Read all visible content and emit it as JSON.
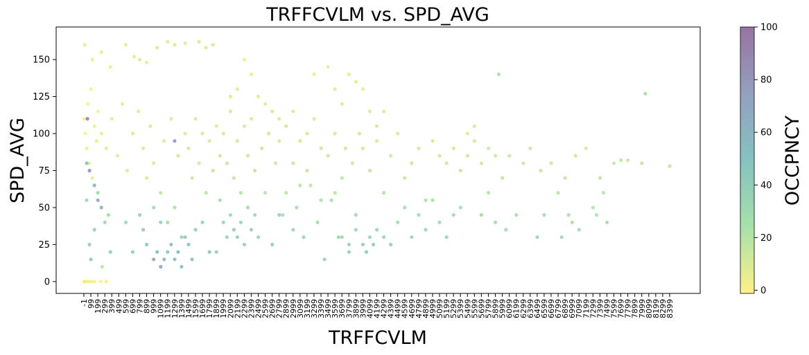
{
  "chart_data": {
    "type": "scatter",
    "title": "TRFFCVLM vs. SPD_AVG",
    "xlabel": "TRFFCVLM",
    "ylabel": "SPD_AVG",
    "colorbar_label": "OCCPNCY",
    "colormap": "viridis_r",
    "marker_alpha": 0.5,
    "grid": false,
    "legend": "none",
    "xlim": [
      -1,
      8399
    ],
    "ylim": [
      -8,
      172
    ],
    "clim": [
      0,
      100
    ],
    "yticks": [
      0,
      25,
      50,
      75,
      100,
      125,
      150
    ],
    "colorbar_ticks": [
      0,
      20,
      40,
      60,
      80,
      100
    ],
    "xtick_labels": [
      "-1",
      "99",
      "199",
      "299",
      "399",
      "499",
      "599",
      "699",
      "799",
      "899",
      "999",
      "1099",
      "1199",
      "1299",
      "1399",
      "1499",
      "1599",
      "1699",
      "1799",
      "1899",
      "1999",
      "2099",
      "2199",
      "2299",
      "2399",
      "2499",
      "2599",
      "2699",
      "2799",
      "2899",
      "2999",
      "3099",
      "3199",
      "3299",
      "3399",
      "3499",
      "3599",
      "3699",
      "3799",
      "3899",
      "3999",
      "4099",
      "4199",
      "4299",
      "4399",
      "4499",
      "4599",
      "4699",
      "4799",
      "4899",
      "4999",
      "5099",
      "5199",
      "5299",
      "5399",
      "5499",
      "5599",
      "5699",
      "5799",
      "5899",
      "5999",
      "6099",
      "6199",
      "6299",
      "6399",
      "6499",
      "6599",
      "6699",
      "6799",
      "6899",
      "6999",
      "7099",
      "7199",
      "7299",
      "7399",
      "7499",
      "7599",
      "7699",
      "7799",
      "7899",
      "7999",
      "8099",
      "8199",
      "8299",
      "8399"
    ],
    "points": [
      [
        0,
        110,
        2
      ],
      [
        20,
        100,
        3
      ],
      [
        40,
        90,
        4
      ],
      [
        60,
        120,
        2
      ],
      [
        80,
        80,
        5
      ],
      [
        100,
        130,
        3
      ],
      [
        120,
        70,
        6
      ],
      [
        150,
        105,
        4
      ],
      [
        180,
        95,
        3
      ],
      [
        200,
        115,
        2
      ],
      [
        0,
        0,
        2
      ],
      [
        20,
        0,
        2
      ],
      [
        60,
        0,
        3
      ],
      [
        100,
        0,
        4
      ],
      [
        150,
        0,
        3
      ],
      [
        240,
        0,
        2
      ],
      [
        320,
        0,
        3
      ],
      [
        10,
        160,
        8
      ],
      [
        120,
        150,
        6
      ],
      [
        250,
        155,
        8
      ],
      [
        380,
        145,
        6
      ],
      [
        600,
        160,
        7
      ],
      [
        720,
        152,
        8
      ],
      [
        800,
        150,
        9
      ],
      [
        900,
        148,
        7
      ],
      [
        1050,
        158,
        9
      ],
      [
        1200,
        162,
        8
      ],
      [
        1300,
        160,
        10
      ],
      [
        1450,
        161,
        8
      ],
      [
        1650,
        162,
        9
      ],
      [
        1750,
        158,
        10
      ],
      [
        1850,
        160,
        11
      ],
      [
        40,
        80,
        50
      ],
      [
        40,
        55,
        35
      ],
      [
        80,
        25,
        40
      ],
      [
        100,
        15,
        45
      ],
      [
        150,
        35,
        40
      ],
      [
        200,
        60,
        30
      ],
      [
        260,
        10,
        20
      ],
      [
        300,
        40,
        35
      ],
      [
        350,
        45,
        30
      ],
      [
        380,
        20,
        40
      ],
      [
        250,
        100,
        6
      ],
      [
        320,
        90,
        8
      ],
      [
        400,
        110,
        7
      ],
      [
        480,
        85,
        9
      ],
      [
        550,
        120,
        8
      ],
      [
        620,
        75,
        10
      ],
      [
        700,
        100,
        9
      ],
      [
        780,
        115,
        8
      ],
      [
        850,
        90,
        10
      ],
      [
        900,
        70,
        12
      ],
      [
        950,
        105,
        9
      ],
      [
        1000,
        80,
        12
      ],
      [
        1100,
        60,
        18
      ],
      [
        1150,
        95,
        11
      ],
      [
        1200,
        40,
        30
      ],
      [
        1250,
        110,
        10
      ],
      [
        1300,
        50,
        25
      ],
      [
        1350,
        85,
        12
      ],
      [
        1400,
        30,
        35
      ],
      [
        1450,
        100,
        11
      ],
      [
        600,
        40,
        35
      ],
      [
        700,
        20,
        40
      ],
      [
        800,
        45,
        38
      ],
      [
        850,
        35,
        42
      ],
      [
        900,
        25,
        45
      ],
      [
        1000,
        50,
        30
      ],
      [
        1050,
        20,
        55
      ],
      [
        1100,
        40,
        40
      ],
      [
        1150,
        15,
        60
      ],
      [
        1200,
        20,
        48
      ],
      [
        1250,
        25,
        52
      ],
      [
        1300,
        15,
        58
      ],
      [
        1350,
        20,
        55
      ],
      [
        1400,
        10,
        50
      ],
      [
        1450,
        30,
        44
      ],
      [
        1500,
        25,
        48
      ],
      [
        1550,
        15,
        52
      ],
      [
        1600,
        35,
        40
      ],
      [
        1700,
        40,
        38
      ],
      [
        1800,
        20,
        45
      ],
      [
        1500,
        90,
        12
      ],
      [
        1550,
        70,
        15
      ],
      [
        1600,
        110,
        10
      ],
      [
        1650,
        80,
        14
      ],
      [
        1700,
        100,
        11
      ],
      [
        1750,
        60,
        20
      ],
      [
        1800,
        95,
        12
      ],
      [
        1850,
        75,
        16
      ],
      [
        1900,
        105,
        11
      ],
      [
        1950,
        85,
        14
      ],
      [
        2000,
        40,
        35
      ],
      [
        2050,
        30,
        38
      ],
      [
        2100,
        45,
        33
      ],
      [
        2150,
        35,
        40
      ],
      [
        2200,
        30,
        42
      ],
      [
        2250,
        40,
        36
      ],
      [
        2300,
        25,
        40
      ],
      [
        2350,
        50,
        30
      ],
      [
        2400,
        35,
        38
      ],
      [
        2450,
        45,
        33
      ],
      [
        2000,
        100,
        12
      ],
      [
        2050,
        80,
        16
      ],
      [
        2100,
        115,
        11
      ],
      [
        2150,
        70,
        18
      ],
      [
        2200,
        95,
        13
      ],
      [
        2250,
        60,
        22
      ],
      [
        2300,
        105,
        12
      ],
      [
        2350,
        85,
        15
      ],
      [
        2400,
        110,
        11
      ],
      [
        2450,
        75,
        17
      ],
      [
        1900,
        20,
        40
      ],
      [
        1950,
        55,
        30
      ],
      [
        2500,
        30,
        35
      ],
      [
        2550,
        90,
        14
      ],
      [
        2600,
        60,
        22
      ],
      [
        2650,
        100,
        12
      ],
      [
        2700,
        25,
        40
      ],
      [
        2750,
        80,
        15
      ],
      [
        2800,
        95,
        13
      ],
      [
        2850,
        45,
        28
      ],
      [
        2500,
        125,
        8
      ],
      [
        2400,
        140,
        7
      ],
      [
        2300,
        150,
        6
      ],
      [
        2200,
        130,
        9
      ],
      [
        2100,
        125,
        10
      ],
      [
        2600,
        120,
        10
      ],
      [
        2700,
        115,
        11
      ],
      [
        2800,
        110,
        11
      ],
      [
        2900,
        105,
        12
      ],
      [
        3000,
        115,
        10
      ],
      [
        3000,
        80,
        16
      ],
      [
        3050,
        50,
        28
      ],
      [
        3100,
        95,
        13
      ],
      [
        3150,
        30,
        36
      ],
      [
        3200,
        100,
        12
      ],
      [
        3250,
        65,
        20
      ],
      [
        3300,
        110,
        10
      ],
      [
        3350,
        40,
        30
      ],
      [
        3400,
        90,
        14
      ],
      [
        3450,
        15,
        38
      ],
      [
        3300,
        140,
        7
      ],
      [
        3500,
        145,
        6
      ],
      [
        3600,
        130,
        8
      ],
      [
        3700,
        120,
        9
      ],
      [
        3800,
        140,
        7
      ],
      [
        3900,
        135,
        8
      ],
      [
        4000,
        130,
        7
      ],
      [
        4100,
        115,
        9
      ],
      [
        4200,
        105,
        11
      ],
      [
        4300,
        115,
        10
      ],
      [
        3500,
        85,
        15
      ],
      [
        3550,
        55,
        26
      ],
      [
        3600,
        100,
        12
      ],
      [
        3650,
        30,
        34
      ],
      [
        3700,
        70,
        20
      ],
      [
        3750,
        90,
        14
      ],
      [
        3800,
        25,
        36
      ],
      [
        3850,
        80,
        16
      ],
      [
        3900,
        45,
        30
      ],
      [
        3950,
        100,
        12
      ],
      [
        3700,
        30,
        34
      ],
      [
        3800,
        20,
        40
      ],
      [
        3900,
        35,
        32
      ],
      [
        4000,
        25,
        42
      ],
      [
        4050,
        20,
        44
      ],
      [
        4100,
        30,
        38
      ],
      [
        4150,
        25,
        40
      ],
      [
        4200,
        35,
        35
      ],
      [
        4300,
        30,
        36
      ],
      [
        4400,
        25,
        38
      ],
      [
        4000,
        90,
        13
      ],
      [
        4100,
        75,
        17
      ],
      [
        4200,
        95,
        12
      ],
      [
        4300,
        60,
        22
      ],
      [
        4400,
        85,
        15
      ],
      [
        4500,
        100,
        11
      ],
      [
        4600,
        70,
        18
      ],
      [
        4700,
        80,
        16
      ],
      [
        4800,
        90,
        13
      ],
      [
        4900,
        55,
        26
      ],
      [
        4500,
        40,
        30
      ],
      [
        4600,
        50,
        28
      ],
      [
        4700,
        30,
        34
      ],
      [
        4800,
        45,
        30
      ],
      [
        4900,
        35,
        33
      ],
      [
        5000,
        55,
        26
      ],
      [
        5100,
        40,
        32
      ],
      [
        5200,
        30,
        35
      ],
      [
        5300,
        45,
        30
      ],
      [
        5400,
        50,
        28
      ],
      [
        5000,
        95,
        12
      ],
      [
        5100,
        85,
        14
      ],
      [
        5200,
        80,
        15
      ],
      [
        5300,
        90,
        13
      ],
      [
        5400,
        75,
        16
      ],
      [
        5500,
        85,
        14
      ],
      [
        5600,
        95,
        12
      ],
      [
        5700,
        80,
        15
      ],
      [
        5800,
        90,
        13
      ],
      [
        5900,
        85,
        14
      ],
      [
        5500,
        100,
        10
      ],
      [
        5600,
        105,
        11
      ],
      [
        5700,
        45,
        28
      ],
      [
        5800,
        60,
        22
      ],
      [
        5900,
        40,
        30
      ],
      [
        6000,
        70,
        18
      ],
      [
        6050,
        35,
        30
      ],
      [
        6100,
        85,
        15
      ],
      [
        6200,
        45,
        26
      ],
      [
        6300,
        80,
        16
      ],
      [
        5950,
        140,
        25
      ],
      [
        6400,
        90,
        14
      ],
      [
        6500,
        30,
        35
      ],
      [
        6550,
        75,
        17
      ],
      [
        6600,
        45,
        28
      ],
      [
        6700,
        80,
        15
      ],
      [
        6800,
        60,
        20
      ],
      [
        6850,
        30,
        32
      ],
      [
        6900,
        70,
        18
      ],
      [
        6950,
        45,
        26
      ],
      [
        7000,
        40,
        28
      ],
      [
        7050,
        85,
        14
      ],
      [
        7100,
        35,
        30
      ],
      [
        7200,
        90,
        12
      ],
      [
        7300,
        50,
        20
      ],
      [
        7350,
        45,
        25
      ],
      [
        7400,
        70,
        20
      ],
      [
        7450,
        60,
        22
      ],
      [
        7500,
        40,
        28
      ],
      [
        7600,
        80,
        16
      ],
      [
        7700,
        82,
        18
      ],
      [
        7800,
        82,
        16
      ],
      [
        8000,
        80,
        18
      ],
      [
        8050,
        127,
        28
      ],
      [
        8400,
        78,
        17
      ],
      [
        150,
        65,
        60
      ],
      [
        200,
        55,
        70
      ],
      [
        250,
        50,
        65
      ],
      [
        1000,
        15,
        75
      ],
      [
        1100,
        10,
        72
      ],
      [
        1300,
        95,
        80
      ],
      [
        80,
        75,
        85
      ],
      [
        50,
        110,
        90
      ],
      [
        2800,
        45,
        36
      ],
      [
        2900,
        60,
        20
      ],
      [
        3000,
        35,
        34
      ],
      [
        3100,
        65,
        20
      ],
      [
        3200,
        75,
        17
      ],
      [
        3400,
        55,
        24
      ],
      [
        3600,
        60,
        22
      ]
    ]
  }
}
